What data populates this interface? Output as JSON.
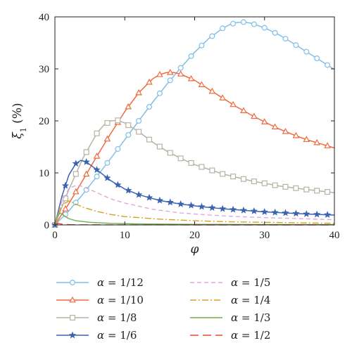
{
  "chart_data": {
    "type": "line",
    "xlabel": "φ",
    "ylabel": "ξ",
    "ylabel_sub": "1",
    "ylabel_unit": "(%)",
    "xlim": [
      0,
      40
    ],
    "ylim": [
      0,
      40
    ],
    "xticks": [
      0,
      10,
      20,
      30,
      40
    ],
    "yticks": [
      0,
      10,
      20,
      30,
      40
    ],
    "grid": false,
    "legend_position": "bottom",
    "series": [
      {
        "name": "α = 1/12",
        "color": "#7fbfe6",
        "marker": "circle",
        "dash": "solid",
        "x": [
          0,
          2,
          4,
          6,
          8,
          10,
          12,
          14,
          16,
          18,
          20,
          22,
          24,
          25,
          26,
          27,
          28,
          30,
          32,
          34,
          36,
          38,
          40
        ],
        "y": [
          0,
          2.7,
          5.9,
          9.3,
          12.8,
          16.4,
          20.0,
          23.6,
          27.0,
          30.2,
          33.2,
          35.8,
          37.8,
          38.5,
          38.9,
          39.0,
          38.8,
          37.9,
          36.6,
          35.0,
          33.3,
          31.6,
          29.9
        ]
      },
      {
        "name": "α = 1/10",
        "color": "#f06a3f",
        "marker": "triangle",
        "dash": "solid",
        "x": [
          0,
          2,
          4,
          6,
          8,
          10,
          12,
          14,
          15,
          16,
          17,
          18,
          20,
          22,
          24,
          26,
          28,
          30,
          32,
          34,
          36,
          38,
          40
        ],
        "y": [
          0,
          4.1,
          8.6,
          13.2,
          17.6,
          21.8,
          25.4,
          28.1,
          28.9,
          29.3,
          29.3,
          29.0,
          27.8,
          26.1,
          24.4,
          22.7,
          21.2,
          19.8,
          18.5,
          17.4,
          16.4,
          15.6,
          14.8
        ]
      },
      {
        "name": "α = 1/8",
        "color": "#b8b2a2",
        "marker": "square",
        "dash": "solid",
        "x": [
          0,
          2,
          4,
          6,
          7,
          8,
          9,
          10,
          12,
          14,
          16,
          18,
          20,
          24,
          28,
          32,
          36,
          40
        ],
        "y": [
          0,
          6.8,
          12.8,
          17.6,
          19.2,
          20.0,
          20.1,
          19.6,
          17.9,
          15.9,
          14.2,
          12.8,
          11.6,
          9.8,
          8.5,
          7.5,
          6.8,
          6.2
        ]
      },
      {
        "name": "α = 1/6",
        "color": "#3a63b0",
        "marker": "star",
        "dash": "solid",
        "x": [
          0,
          1,
          2,
          3,
          3.7,
          4.5,
          6,
          8,
          10,
          12,
          15,
          18,
          21,
          24,
          27,
          30,
          33,
          36,
          40
        ],
        "y": [
          0,
          5.5,
          9.6,
          11.8,
          12.4,
          12.1,
          10.6,
          8.5,
          6.9,
          5.8,
          4.7,
          4.0,
          3.5,
          3.1,
          2.8,
          2.5,
          2.3,
          2.1,
          1.9
        ]
      },
      {
        "name": "α = 1/5",
        "color": "#e0a8dc",
        "marker": "none",
        "dash": "6,4",
        "x": [
          0,
          1,
          2,
          3,
          4,
          6,
          8,
          10,
          14,
          18,
          22,
          26,
          30,
          35,
          40
        ],
        "y": [
          0,
          4.5,
          7.0,
          7.6,
          7.4,
          6.2,
          5.0,
          4.2,
          3.0,
          2.3,
          1.9,
          1.6,
          1.4,
          1.2,
          1.0
        ]
      },
      {
        "name": "α = 1/4",
        "color": "#d9a020",
        "marker": "none",
        "dash": "9,3,2,3",
        "x": [
          0,
          0.5,
          1,
          2,
          3,
          4,
          6,
          8,
          10,
          15,
          20,
          25,
          30,
          35,
          40
        ],
        "y": [
          0,
          2.2,
          3.8,
          4.6,
          4.0,
          3.4,
          2.6,
          2.0,
          1.6,
          1.1,
          0.8,
          0.6,
          0.5,
          0.4,
          0.3
        ]
      },
      {
        "name": "α = 1/3",
        "color": "#6ab04c",
        "marker": "none",
        "dash": "solid",
        "x": [
          0,
          0.3,
          0.7,
          1,
          1.5,
          2,
          3,
          5,
          8,
          12,
          20,
          30,
          40
        ],
        "y": [
          0,
          1.6,
          2.3,
          2.1,
          1.6,
          1.2,
          0.8,
          0.5,
          0.3,
          0.2,
          0.1,
          0.07,
          0.05
        ]
      },
      {
        "name": "α = 1/2",
        "color": "#e84a2a",
        "marker": "none",
        "dash": "12,6",
        "x": [
          0,
          0.3,
          0.6,
          1,
          2,
          4,
          10,
          20,
          40
        ],
        "y": [
          0,
          0.35,
          0.25,
          0.15,
          0.05,
          0.02,
          0.01,
          0.0,
          0.0
        ]
      }
    ]
  }
}
